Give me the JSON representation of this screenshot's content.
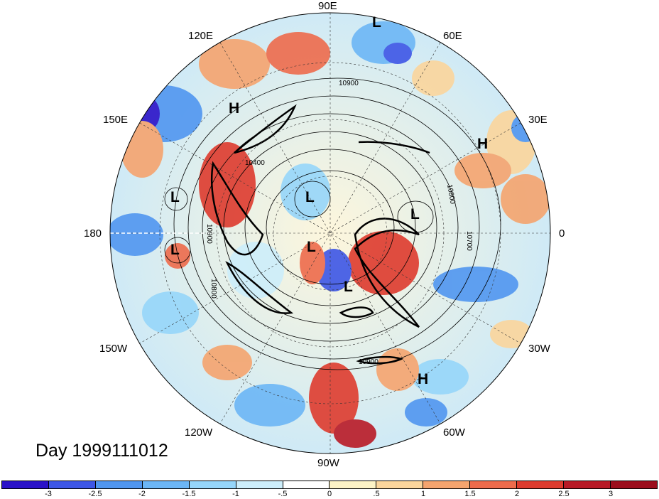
{
  "title": "Day 1999111012",
  "longitude_labels": [
    {
      "key": "lon-90e",
      "text": "90E"
    },
    {
      "key": "lon-120e",
      "text": "120E"
    },
    {
      "key": "lon-60e",
      "text": "60E"
    },
    {
      "key": "lon-150e",
      "text": "150E"
    },
    {
      "key": "lon-30e",
      "text": "30E"
    },
    {
      "key": "lon-180",
      "text": "180"
    },
    {
      "key": "lon-0",
      "text": "0"
    },
    {
      "key": "lon-150w",
      "text": "150W"
    },
    {
      "key": "lon-30w",
      "text": "30W"
    },
    {
      "key": "lon-120w",
      "text": "120W"
    },
    {
      "key": "lon-60w",
      "text": "60W"
    },
    {
      "key": "lon-90w",
      "text": "90W"
    }
  ],
  "pressure_centers": [
    "L",
    "H",
    "L",
    "H",
    "L",
    "L",
    "L",
    "L",
    "L",
    "H"
  ],
  "contour_labels": [
    "10900",
    "10400",
    "10800",
    "10900",
    "10700",
    "10800",
    "10900"
  ],
  "colorbar": {
    "colors": [
      "#2a12c8",
      "#3d56e6",
      "#5096f0",
      "#6cb6f6",
      "#96d6fa",
      "#cdeefb",
      "#ffffff",
      "#fdf3c6",
      "#fbd59c",
      "#f5a46e",
      "#ee6b4c",
      "#de3b2e",
      "#b81a26",
      "#9c0d1c"
    ],
    "ticks": [
      "-3",
      "-2.5",
      "-2",
      "-1.5",
      "-1",
      "-.5",
      "0",
      ".5",
      "1",
      "1.5",
      "2",
      "2.5",
      "3"
    ]
  }
}
